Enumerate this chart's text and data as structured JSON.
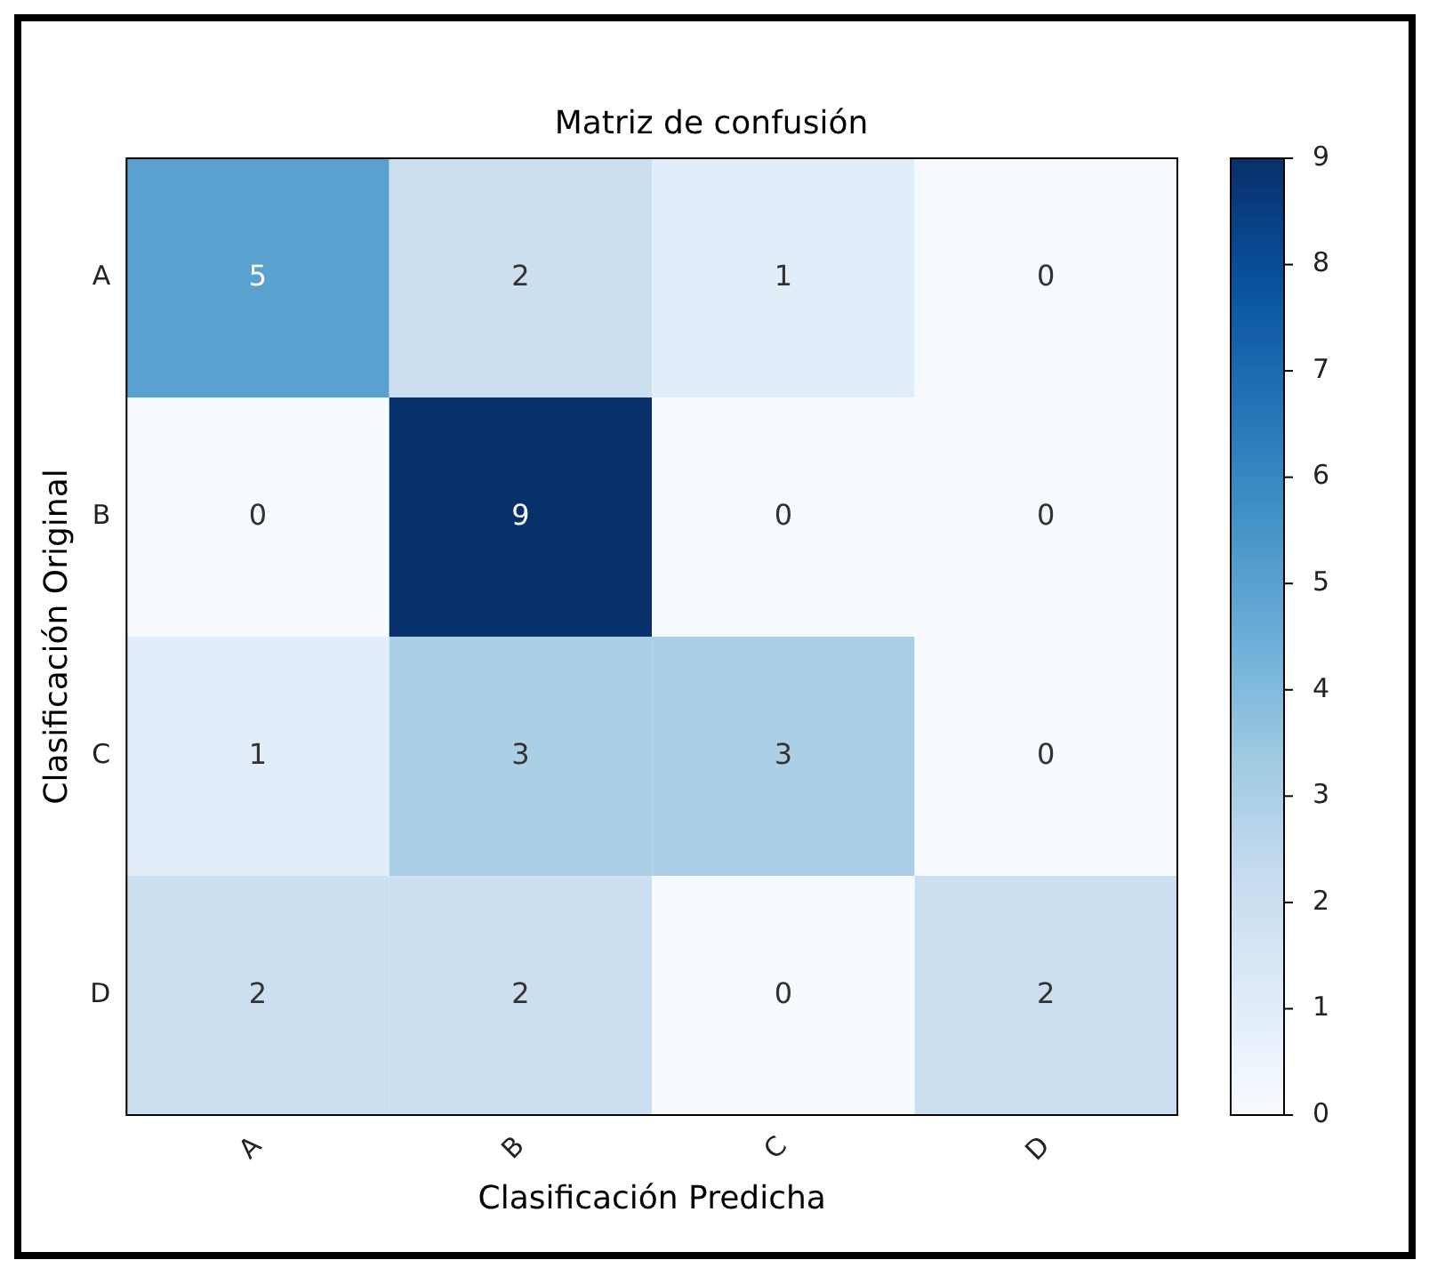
{
  "chart_data": {
    "type": "heatmap",
    "title": "Matriz de confusión",
    "xlabel": "Clasificación Predicha",
    "ylabel": "Clasificación Original",
    "categories": [
      "A",
      "B",
      "C",
      "D"
    ],
    "y_categories": [
      "A",
      "B",
      "C",
      "D"
    ],
    "cells": [
      [
        5,
        2,
        1,
        0
      ],
      [
        0,
        9,
        0,
        0
      ],
      [
        1,
        3,
        3,
        0
      ],
      [
        2,
        2,
        0,
        2
      ]
    ],
    "clim": [
      0,
      9
    ],
    "cticks": [
      0,
      1,
      2,
      3,
      4,
      5,
      6,
      7,
      8,
      9
    ],
    "data_labels": true
  }
}
